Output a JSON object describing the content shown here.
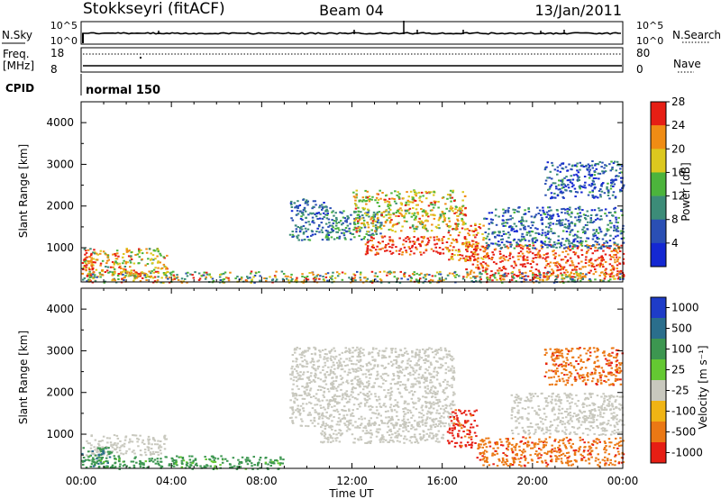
{
  "header": {
    "station": "Stokkseyri (fitACF)",
    "beam": "Beam 04",
    "date": "13/Jan/2011"
  },
  "top_panels": {
    "nsky_label": "N.Sky",
    "nsearch_label": "N.Search",
    "noise_ticks": [
      "10^5",
      "10^0"
    ],
    "freq_label": "Freq.",
    "freq_unit": "[MHz]",
    "freq_ticks": [
      "18",
      "8"
    ],
    "nave_label": "Nave",
    "nave_ticks": [
      "80",
      "0"
    ],
    "cpid_label": "CPID",
    "cpid_value": "normal 150"
  },
  "chart_data": [
    {
      "type": "heatmap",
      "name": "power",
      "ylabel": "Slant Range [km]",
      "xlabel": "",
      "y_ticks": [
        1000,
        2000,
        3000,
        4000
      ],
      "ylim": [
        180,
        4500
      ],
      "x_ticks": [
        "00:00",
        "04:00",
        "08:00",
        "12:00",
        "16:00",
        "20:00",
        "00:00"
      ],
      "xlim_hours": [
        0,
        24
      ],
      "colorbar": {
        "label": "Power [dB]",
        "ticks": [
          "4",
          "8",
          "12",
          "16",
          "20",
          "24",
          "28"
        ],
        "colors": [
          "#1428d2",
          "#2a4fb4",
          "#3c8c78",
          "#4cb43c",
          "#dcc81e",
          "#f08c14",
          "#e61e14"
        ]
      },
      "regions": [
        {
          "t": [
            0.1,
            3.8
          ],
          "r": [
            300,
            1000
          ],
          "level": [
            0.35,
            0.95
          ]
        },
        {
          "t": [
            0.0,
            0.6
          ],
          "r": [
            200,
            900
          ],
          "level": [
            0.7,
            1.0
          ]
        },
        {
          "t": [
            9.2,
            11.0
          ],
          "r": [
            1200,
            2200
          ],
          "level": [
            0.1,
            0.45
          ]
        },
        {
          "t": [
            10.8,
            13.3
          ],
          "r": [
            1200,
            1900
          ],
          "level": [
            0.15,
            0.55
          ]
        },
        {
          "t": [
            12.0,
            17.0
          ],
          "r": [
            1400,
            2400
          ],
          "level": [
            0.4,
            0.9
          ]
        },
        {
          "t": [
            12.5,
            16.2
          ],
          "r": [
            850,
            1300
          ],
          "level": [
            0.8,
            1.0
          ]
        },
        {
          "t": [
            16.2,
            17.8
          ],
          "r": [
            700,
            1600
          ],
          "level": [
            0.6,
            1.0
          ]
        },
        {
          "t": [
            17.0,
            24.0
          ],
          "r": [
            300,
            1100
          ],
          "level": [
            0.75,
            1.0
          ]
        },
        {
          "t": [
            17.8,
            24.0
          ],
          "r": [
            1000,
            2000
          ],
          "level": [
            0.05,
            0.5
          ]
        },
        {
          "t": [
            20.5,
            24.0
          ],
          "r": [
            2200,
            3100
          ],
          "level": [
            0.0,
            0.45
          ]
        },
        {
          "t": [
            0.0,
            24.0
          ],
          "r": [
            180,
            450
          ],
          "level": [
            0.2,
            0.95
          ]
        }
      ]
    },
    {
      "type": "heatmap",
      "name": "velocity",
      "ylabel": "Slant Range [km]",
      "xlabel": "Time UT",
      "y_ticks": [
        1000,
        2000,
        3000,
        4000
      ],
      "ylim": [
        180,
        4500
      ],
      "x_ticks": [
        "00:00",
        "04:00",
        "08:00",
        "12:00",
        "16:00",
        "20:00",
        "00:00"
      ],
      "xlim_hours": [
        0,
        24
      ],
      "colorbar": {
        "label": "Velocity [m s⁻¹]",
        "ticks": [
          "1000",
          "500",
          "100",
          "25",
          "-25",
          "-100",
          "-500",
          "-1000"
        ],
        "colors": [
          "#1e3cc8",
          "#2a6e8c",
          "#3c9650",
          "#64c832",
          "#c8c8be",
          "#f0b414",
          "#eb7814",
          "#e61e14"
        ]
      },
      "regions": [
        {
          "t": [
            0.1,
            3.8
          ],
          "r": [
            500,
            1000
          ],
          "level": [
            0.5,
            0.5
          ]
        },
        {
          "t": [
            0.0,
            1.5
          ],
          "r": [
            200,
            700
          ],
          "level": [
            0.2,
            0.35
          ]
        },
        {
          "t": [
            9.2,
            16.5
          ],
          "r": [
            1200,
            3100
          ],
          "level": [
            0.5,
            0.5
          ]
        },
        {
          "t": [
            10.5,
            16.0
          ],
          "r": [
            800,
            1300
          ],
          "level": [
            0.5,
            0.5
          ]
        },
        {
          "t": [
            16.2,
            17.5
          ],
          "r": [
            700,
            1600
          ],
          "level": [
            0.85,
            1.0
          ]
        },
        {
          "t": [
            17.5,
            24.0
          ],
          "r": [
            250,
            950
          ],
          "level": [
            0.75,
            0.9
          ]
        },
        {
          "t": [
            19.0,
            24.0
          ],
          "r": [
            1000,
            2000
          ],
          "level": [
            0.5,
            0.5
          ]
        },
        {
          "t": [
            0.0,
            9.0
          ],
          "r": [
            180,
            500
          ],
          "level": [
            0.25,
            0.4
          ]
        },
        {
          "t": [
            20.5,
            24.0
          ],
          "r": [
            2200,
            3100
          ],
          "level": [
            0.75,
            0.9
          ]
        }
      ]
    }
  ]
}
